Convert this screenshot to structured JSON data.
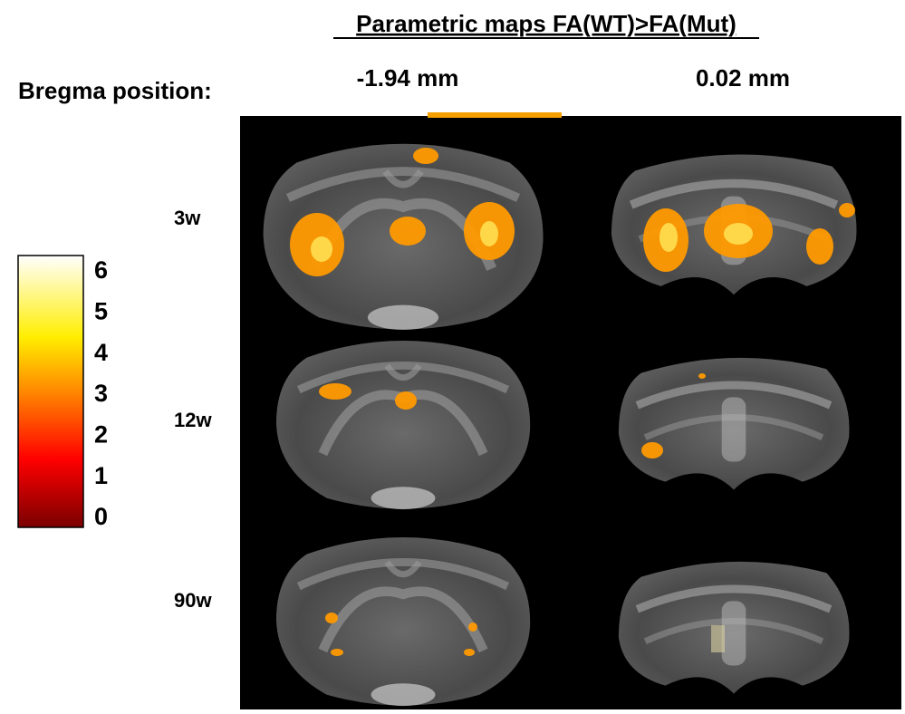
{
  "title": "Parametric maps FA(WT)>FA(Mut)",
  "row_header": "Bregma position:",
  "columns": [
    "-1.94 mm",
    "0.02 mm"
  ],
  "rows": [
    "3w",
    "12w",
    "90w"
  ],
  "colorbar": {
    "ticks": [
      0,
      1,
      2,
      3,
      4,
      5,
      6
    ],
    "lim": [
      0,
      6
    ]
  }
}
